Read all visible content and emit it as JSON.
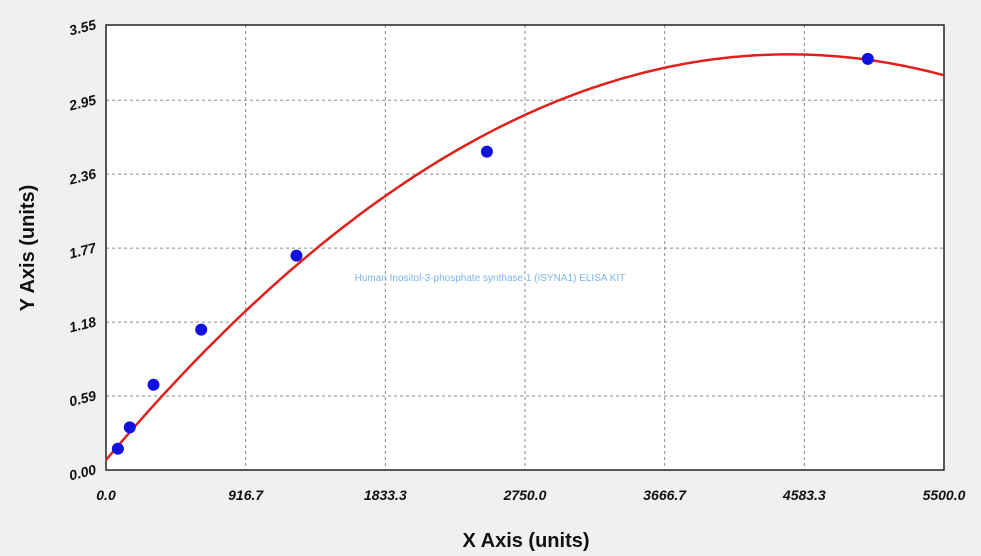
{
  "chart_data": {
    "type": "scatter",
    "xlabel": "X Axis (units)",
    "ylabel": "Y Axis (units)",
    "watermark": "Human Inositol-3-phosphate synthase 1 (ISYNA1) ELISA KIT",
    "xlim": [
      0,
      5500
    ],
    "ylim": [
      0,
      3.55
    ],
    "x_ticks": [
      "0.0",
      "916.7",
      "1833.3",
      "2750.0",
      "3666.7",
      "4583.3",
      "5500.0"
    ],
    "y_ticks": [
      "0.00",
      "0.59",
      "1.18",
      "1.77",
      "2.36",
      "2.95",
      "3.55"
    ],
    "grid": true,
    "points": [
      {
        "x": 78,
        "y": 0.17
      },
      {
        "x": 156,
        "y": 0.34
      },
      {
        "x": 312,
        "y": 0.68
      },
      {
        "x": 625,
        "y": 1.12
      },
      {
        "x": 1250,
        "y": 1.71
      },
      {
        "x": 2500,
        "y": 2.54
      },
      {
        "x": 5000,
        "y": 3.28
      }
    ],
    "fit_curve": {
      "type": "polynomial-2",
      "coefficients": [
        0.08,
        0.001444,
        -1.611e-07
      ],
      "color": "#e0201b"
    },
    "point_color": "#1010e0",
    "background": "#f0f0f0",
    "plot_background": "#ffffff"
  }
}
